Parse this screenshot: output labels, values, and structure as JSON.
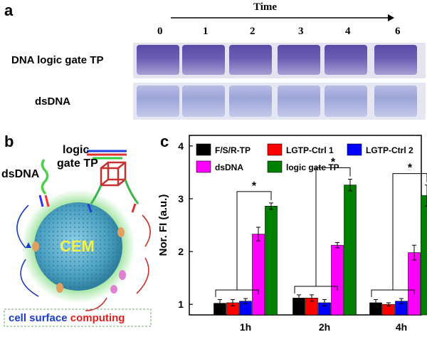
{
  "panel_a": {
    "letter": "a",
    "time_label": "Time",
    "time_points": [
      "0",
      "1",
      "2",
      "3",
      "4",
      "6"
    ],
    "row_labels": [
      "DNA logic gate TP",
      "dsDNA"
    ],
    "colors": {
      "band_top": "#5a4aa8",
      "band_bottom": "#9aa4d8",
      "gel_bg": "#dcdcec"
    }
  },
  "panel_b": {
    "letter": "b",
    "labels": {
      "dsdna": "dsDNA",
      "logic_line1": "logic",
      "logic_line2": "gate TP",
      "cell": "CEM",
      "caption_part1": "cell surface",
      "caption_part2": "computing"
    },
    "colors": {
      "cell": "#4fa6c4",
      "glow": "#5bd15b",
      "cell_text": "#f5f04a",
      "caption_blue": "#1a3cc8",
      "caption_red": "#e02020"
    }
  },
  "panel_c": {
    "letter": "c",
    "significance_mark": "*",
    "chart_data": {
      "type": "bar",
      "ylabel": "Nor. FI (a.u.)",
      "xlabel": "",
      "ylim": [
        0.8,
        4.2
      ],
      "yticks": [
        1,
        2,
        3,
        4
      ],
      "categories": [
        "1h",
        "2h",
        "4h"
      ],
      "series": [
        {
          "name": "F/S/R-TP",
          "color": "#000000",
          "values": [
            1.02,
            1.12,
            1.03
          ],
          "errors": [
            0.07,
            0.06,
            0.06
          ]
        },
        {
          "name": "LGTP-Ctrl 1",
          "color": "#ff0000",
          "values": [
            1.03,
            1.12,
            1.0
          ],
          "errors": [
            0.06,
            0.06,
            0.03
          ]
        },
        {
          "name": "LGTP-Ctrl 2",
          "color": "#0000ff",
          "values": [
            1.06,
            1.03,
            1.06
          ],
          "errors": [
            0.05,
            0.06,
            0.05
          ]
        },
        {
          "name": "dsDNA",
          "color": "#ff00ff",
          "values": [
            2.33,
            2.12,
            1.98
          ],
          "errors": [
            0.13,
            0.05,
            0.14
          ]
        },
        {
          "name": "logic gate TP",
          "color": "#008000",
          "values": [
            2.86,
            3.26,
            3.06
          ],
          "errors": [
            0.06,
            0.11,
            0.2
          ]
        }
      ],
      "legend_placement": "top"
    }
  }
}
